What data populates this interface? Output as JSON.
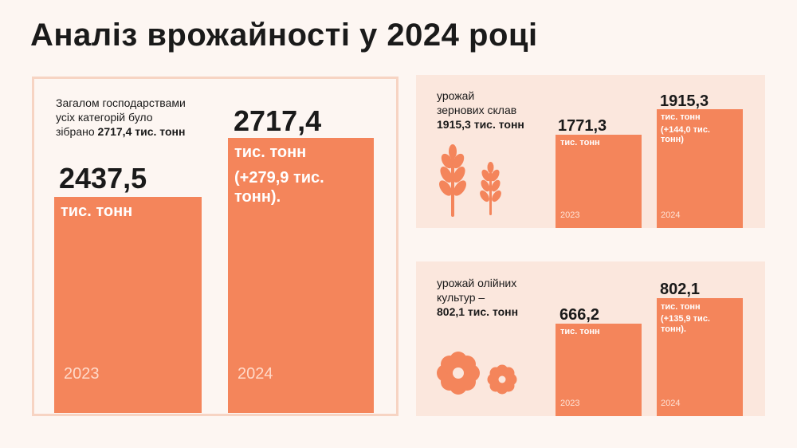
{
  "title": "Аналіз врожайності у 2024 році",
  "colors": {
    "bar": "#f4855b",
    "panel_border": "#f7d4c3",
    "panel_bg": "#fbe7dd",
    "page_bg": "#fdf6f2"
  },
  "main": {
    "intro_line1": "Загалом господарствами",
    "intro_line2": "усіх категорій було",
    "intro_line3_prefix": "зібрано ",
    "intro_line3_bold": "2717,4 тис. тонн",
    "bar_2023": {
      "value_label": "2437,5",
      "unit": "тис. тонн",
      "year": "2023"
    },
    "bar_2024": {
      "value_label": "2717,4",
      "unit": "тис. тонн",
      "change_line1": "(+279,9 тис.",
      "change_line2": "тонн).",
      "year": "2024"
    }
  },
  "grain": {
    "text_line1": "урожай",
    "text_line2": "зернових склав",
    "text_bold": "1915,3 тис. тонн",
    "bar_2023": {
      "value_label": "1771,3",
      "unit": "тис. тонн",
      "year": "2023"
    },
    "bar_2024": {
      "value_label": "1915,3",
      "unit": "тис. тонн",
      "change_line1": "(+144,0 тис.",
      "change_line2": "тонн)",
      "year": "2024"
    },
    "icon": "wheat-icon"
  },
  "oil": {
    "text_line1": "урожай олійних",
    "text_line2": "культур –",
    "text_bold": "802,1 тис. тонн",
    "bar_2023": {
      "value_label": "666,2",
      "unit": "тис. тонн",
      "year": "2023"
    },
    "bar_2024": {
      "value_label": "802,1",
      "unit": "тис. тонн",
      "change_line1": "(+135,9 тис.",
      "change_line2": "тонн).",
      "year": "2024"
    },
    "icon": "flower-icon"
  },
  "chart_data": [
    {
      "type": "bar",
      "categories": [
        "2023",
        "2024"
      ],
      "values": [
        2437.5,
        2717.4
      ],
      "unit": "тис. тонн"
    },
    {
      "type": "bar",
      "categories": [
        "2023",
        "2024"
      ],
      "values": [
        1771.3,
        1915.3
      ],
      "unit": "тис. тонн"
    },
    {
      "type": "bar",
      "categories": [
        "2023",
        "2024"
      ],
      "values": [
        666.2,
        802.1
      ],
      "unit": "тис. тонн"
    }
  ]
}
